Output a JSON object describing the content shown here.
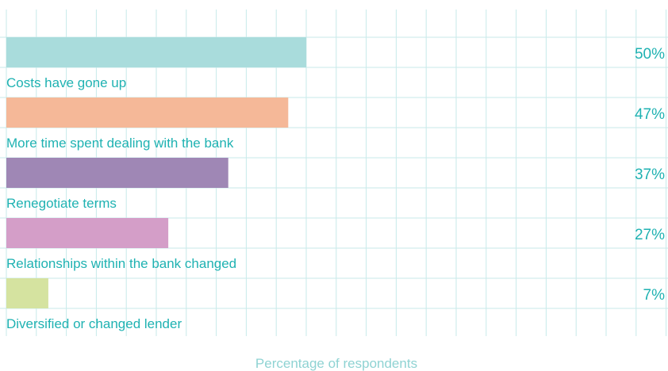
{
  "chart_data": {
    "type": "bar",
    "orientation": "horizontal",
    "categories": [
      "Costs have gone up",
      "More time spent dealing with the bank",
      "Renegotiate terms",
      "Relationships within the bank changed",
      "Diversified or changed lender"
    ],
    "values": [
      50,
      47,
      37,
      27,
      7
    ],
    "value_labels": [
      "50%",
      "47%",
      "37%",
      "27%",
      "7%"
    ],
    "colors": [
      "#a9dcdc",
      "#f5b898",
      "#9f87b5",
      "#d49ec8",
      "#d5e3a0"
    ],
    "xlabel": "Percentage of respondents",
    "xlim": [
      0,
      110
    ],
    "grid": true,
    "grid_color": "#c7eaea",
    "label_color": "#1fb2b2"
  }
}
